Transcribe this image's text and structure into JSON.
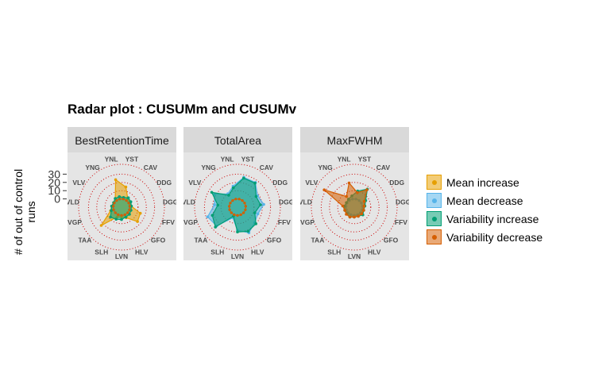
{
  "title": "Radar plot : CUSUMm and CUSUMv",
  "ylabel_lines": [
    "# of out of control",
    "runs"
  ],
  "colors": {
    "Mean increase": "#E69F00",
    "Mean decrease": "#56B4E9",
    "Variability increase": "#009E73",
    "Variability decrease": "#D55E00",
    "grid": "#cc0000"
  },
  "legend": {
    "items": [
      "Mean increase",
      "Mean decrease",
      "Variability increase",
      "Variability decrease"
    ]
  },
  "chart_data": {
    "type": "radar",
    "title": "Radar plot : CUSUMm and CUSUMv",
    "ylabel": "# of out of control runs",
    "yticks": [
      0,
      10,
      20,
      30
    ],
    "ylim": [
      -10,
      40
    ],
    "grid": true,
    "legend_position": "right",
    "categories": [
      "YST",
      "CAV",
      "DDG",
      "DGG",
      "FFV",
      "GFO",
      "HLV",
      "LVN",
      "SLH",
      "TAA",
      "VGP",
      "VLD",
      "VLV",
      "YNG",
      "YNL"
    ],
    "panels": [
      {
        "name": "BestRetentionTime",
        "series": [
          {
            "name": "Mean increase",
            "values": [
              15,
              3,
              1,
              2,
              14,
              16,
              4,
              2,
              3,
              23,
              4,
              2,
              1,
              3,
              24
            ]
          },
          {
            "name": "Mean decrease",
            "values": [
              0,
              0,
              0,
              0,
              0,
              0,
              0,
              0,
              0,
              0,
              0,
              0,
              0,
              0,
              0
            ]
          },
          {
            "name": "Variability increase",
            "values": [
              2,
              4,
              3,
              2,
              2,
              3,
              3,
              5,
              6,
              8,
              3,
              2,
              1,
              3,
              3
            ]
          },
          {
            "name": "Variability decrease",
            "values": [
              0,
              0,
              0,
              0,
              0,
              0,
              0,
              0,
              0,
              0,
              0,
              0,
              0,
              0,
              0
            ]
          }
        ]
      },
      {
        "name": "TotalArea",
        "series": [
          {
            "name": "Mean increase",
            "values": [
              0,
              0,
              0,
              0,
              0,
              0,
              0,
              0,
              0,
              0,
              0,
              0,
              0,
              0,
              0
            ]
          },
          {
            "name": "Mean decrease",
            "values": [
              27,
              27,
              18,
              22,
              16,
              18,
              24,
              18,
              4,
              24,
              28,
              18,
              22,
              10,
              16
            ]
          },
          {
            "name": "Variability increase",
            "values": [
              26,
              26,
              16,
              18,
              12,
              20,
              22,
              20,
              2,
              26,
              22,
              14,
              26,
              8,
              14
            ]
          },
          {
            "name": "Variability decrease",
            "values": [
              0,
              0,
              0,
              0,
              0,
              0,
              0,
              0,
              0,
              0,
              0,
              0,
              0,
              0,
              0
            ]
          }
        ]
      },
      {
        "name": "MaxFWHM",
        "series": [
          {
            "name": "Mean increase",
            "values": [
              0,
              0,
              0,
              0,
              0,
              0,
              0,
              0,
              0,
              0,
              0,
              0,
              0,
              0,
              0
            ]
          },
          {
            "name": "Mean decrease",
            "values": [
              0,
              0,
              0,
              0,
              0,
              0,
              0,
              0,
              0,
              0,
              0,
              0,
              0,
              0,
              0
            ]
          },
          {
            "name": "Variability increase",
            "values": [
              10,
              17,
              6,
              3,
              2,
              4,
              2,
              2,
              3,
              2,
              2,
              2,
              1,
              2,
              4
            ]
          },
          {
            "name": "Variability decrease",
            "values": [
              8,
              16,
              4,
              2,
              2,
              2,
              2,
              2,
              3,
              3,
              2,
              4,
              32,
              6,
              20
            ]
          }
        ]
      }
    ]
  }
}
